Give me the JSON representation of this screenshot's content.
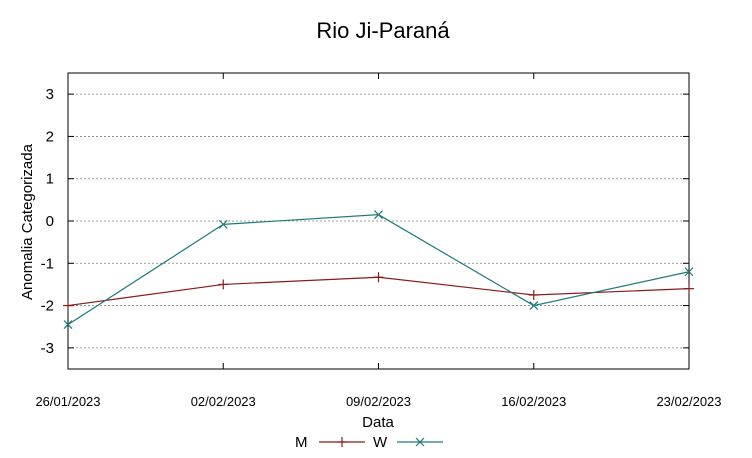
{
  "chart_data": {
    "type": "line",
    "title": "Rio Ji-Paraná",
    "xlabel": "Data",
    "ylabel": "Anomalia Categorizada",
    "categories": [
      "26/01/2023",
      "02/02/2023",
      "09/02/2023",
      "16/02/2023",
      "23/02/2023"
    ],
    "yticks": [
      "3",
      "2",
      "1",
      "0",
      "-1",
      "-2",
      "-3"
    ],
    "ylim": [
      -3.5,
      3.5
    ],
    "grid": true,
    "legend_position": "bottom",
    "series": [
      {
        "name": "M",
        "color": "#8b1a1a",
        "marker": "plus",
        "values": [
          -2.0,
          -1.5,
          -1.33,
          -1.75,
          -1.6
        ]
      },
      {
        "name": "W",
        "color": "#1f7a7a",
        "marker": "x",
        "values": [
          -2.45,
          -0.08,
          0.15,
          -2.0,
          -1.2
        ]
      }
    ]
  }
}
